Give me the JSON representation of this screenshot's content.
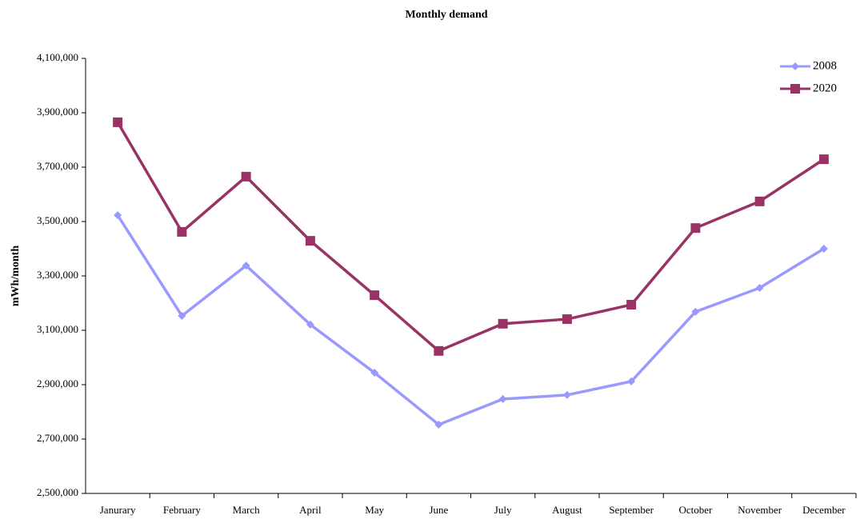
{
  "chart_data": {
    "type": "line",
    "title": "Monthly demand",
    "y_label": "mWh/month",
    "categories": [
      "Janurary",
      "February",
      "March",
      "April",
      "May",
      "June",
      "July",
      "August",
      "September",
      "October",
      "November",
      "December"
    ],
    "series": [
      {
        "name": "2008",
        "color": "#9999ff",
        "marker": "diamond",
        "values": [
          3523000,
          3153000,
          3338000,
          3121000,
          2944000,
          2753000,
          2847000,
          2862000,
          2912000,
          3168000,
          3256000,
          3400000
        ]
      },
      {
        "name": "2020",
        "color": "#993366",
        "marker": "square",
        "values": [
          3865000,
          3462000,
          3665000,
          3429000,
          3229000,
          3024000,
          3124000,
          3141000,
          3194000,
          3476000,
          3574000,
          3729000
        ]
      }
    ],
    "ylim": [
      2500000,
      4100000
    ],
    "yticks": [
      {
        "value": 2500000,
        "label": "2,500,000"
      },
      {
        "value": 2700000,
        "label": "2,700,000"
      },
      {
        "value": 2900000,
        "label": "2,900,000"
      },
      {
        "value": 3100000,
        "label": "3,100,000"
      },
      {
        "value": 3300000,
        "label": "3,300,000"
      },
      {
        "value": 3500000,
        "label": "3,500,000"
      },
      {
        "value": 3700000,
        "label": "3,700,000"
      },
      {
        "value": 3900000,
        "label": "3,900,000"
      },
      {
        "value": 4100000,
        "label": "4,100,000"
      }
    ],
    "legend": "upper right",
    "grid": false
  }
}
